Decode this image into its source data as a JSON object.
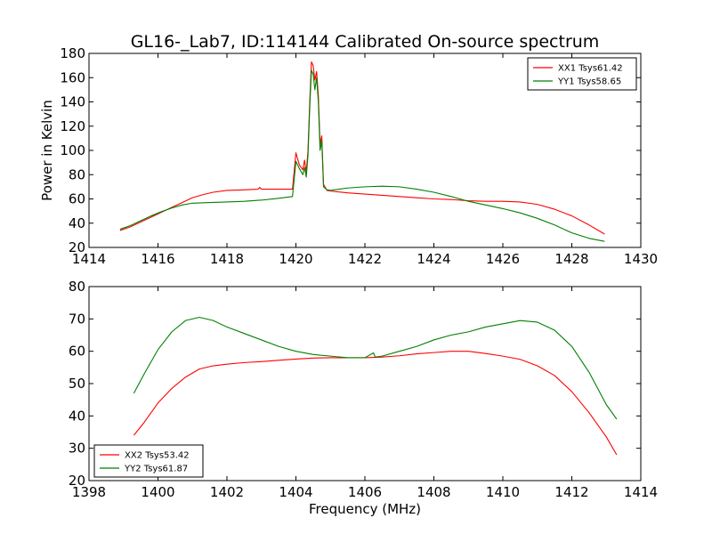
{
  "figure": {
    "title": "GL16-_Lab7, ID:114144 Calibrated On-source spectrum",
    "xlabel": "Frequency (MHz)"
  },
  "chart_data": [
    {
      "type": "line",
      "title": "",
      "xlabel": "",
      "ylabel": "Power in Kelvin",
      "xlim": [
        1414,
        1430
      ],
      "ylim": [
        20,
        180
      ],
      "xticks": [
        1414,
        1416,
        1418,
        1420,
        1422,
        1424,
        1426,
        1428,
        1430
      ],
      "yticks": [
        20,
        40,
        60,
        80,
        100,
        120,
        140,
        160,
        180
      ],
      "legend": "top-right",
      "grid": false,
      "series": [
        {
          "name": "XX1 Tsys61.42",
          "color": "#ff0000",
          "points": [
            [
              1414.9,
              34
            ],
            [
              1415.2,
              37
            ],
            [
              1415.5,
              41
            ],
            [
              1415.8,
              45
            ],
            [
              1416.1,
              49
            ],
            [
              1416.4,
              53
            ],
            [
              1416.7,
              57
            ],
            [
              1417.0,
              61
            ],
            [
              1417.3,
              63.5
            ],
            [
              1417.6,
              65.5
            ],
            [
              1418.0,
              67
            ],
            [
              1418.5,
              67.5
            ],
            [
              1418.9,
              68
            ],
            [
              1418.95,
              69.5
            ],
            [
              1419.0,
              68
            ],
            [
              1419.5,
              68
            ],
            [
              1419.9,
              68
            ],
            [
              1420.0,
              98
            ],
            [
              1420.1,
              88
            ],
            [
              1420.2,
              84
            ],
            [
              1420.25,
              92
            ],
            [
              1420.3,
              82
            ],
            [
              1420.35,
              100
            ],
            [
              1420.4,
              140
            ],
            [
              1420.45,
              173
            ],
            [
              1420.5,
              170
            ],
            [
              1420.55,
              158
            ],
            [
              1420.6,
              165
            ],
            [
              1420.65,
              145
            ],
            [
              1420.7,
              105
            ],
            [
              1420.75,
              112
            ],
            [
              1420.8,
              72
            ],
            [
              1420.9,
              67
            ],
            [
              1421.0,
              66.5
            ],
            [
              1421.5,
              65
            ],
            [
              1422.0,
              64
            ],
            [
              1422.5,
              63
            ],
            [
              1423.0,
              62
            ],
            [
              1423.5,
              61
            ],
            [
              1424.0,
              60
            ],
            [
              1424.5,
              59.5
            ],
            [
              1425.0,
              58.5
            ],
            [
              1425.5,
              58
            ],
            [
              1426.0,
              58
            ],
            [
              1426.5,
              57.5
            ],
            [
              1427.0,
              55.5
            ],
            [
              1427.5,
              51.5
            ],
            [
              1428.0,
              46
            ],
            [
              1428.5,
              38.5
            ],
            [
              1428.95,
              31
            ]
          ]
        },
        {
          "name": "YY1 Tsys58.65",
          "color": "#008000",
          "points": [
            [
              1414.9,
              35
            ],
            [
              1415.2,
              38
            ],
            [
              1415.5,
              42
            ],
            [
              1415.8,
              46
            ],
            [
              1416.1,
              49.5
            ],
            [
              1416.4,
              52.5
            ],
            [
              1416.7,
              55
            ],
            [
              1417.0,
              56.5
            ],
            [
              1417.5,
              57
            ],
            [
              1418.0,
              57.5
            ],
            [
              1418.5,
              58
            ],
            [
              1419.0,
              59
            ],
            [
              1419.5,
              60.5
            ],
            [
              1419.9,
              62
            ],
            [
              1420.0,
              91
            ],
            [
              1420.1,
              85
            ],
            [
              1420.2,
              80
            ],
            [
              1420.25,
              86
            ],
            [
              1420.3,
              78
            ],
            [
              1420.35,
              96
            ],
            [
              1420.4,
              135
            ],
            [
              1420.45,
              166
            ],
            [
              1420.5,
              163
            ],
            [
              1420.55,
              150
            ],
            [
              1420.6,
              160
            ],
            [
              1420.65,
              140
            ],
            [
              1420.7,
              100
            ],
            [
              1420.75,
              108
            ],
            [
              1420.8,
              70
            ],
            [
              1420.9,
              67.5
            ],
            [
              1421.0,
              67
            ],
            [
              1421.5,
              69
            ],
            [
              1422.0,
              70
            ],
            [
              1422.5,
              70.5
            ],
            [
              1423.0,
              70
            ],
            [
              1423.5,
              68
            ],
            [
              1424.0,
              65.5
            ],
            [
              1424.5,
              62
            ],
            [
              1425.0,
              58
            ],
            [
              1425.5,
              55
            ],
            [
              1426.0,
              52
            ],
            [
              1426.5,
              48.5
            ],
            [
              1427.0,
              44
            ],
            [
              1427.5,
              38.5
            ],
            [
              1428.0,
              32
            ],
            [
              1428.5,
              27.5
            ],
            [
              1428.95,
              25
            ]
          ]
        }
      ]
    },
    {
      "type": "line",
      "title": "",
      "xlabel": "Frequency (MHz)",
      "ylabel": "",
      "xlim": [
        1398,
        1414
      ],
      "ylim": [
        20,
        80
      ],
      "xticks": [
        1398,
        1400,
        1402,
        1404,
        1406,
        1408,
        1410,
        1412,
        1414
      ],
      "yticks": [
        20,
        30,
        40,
        50,
        60,
        70,
        80
      ],
      "legend": "bottom-left",
      "grid": false,
      "series": [
        {
          "name": "XX2 Tsys53.42",
          "color": "#ff0000",
          "points": [
            [
              1399.3,
              34
            ],
            [
              1399.6,
              38
            ],
            [
              1400.0,
              44
            ],
            [
              1400.4,
              48.5
            ],
            [
              1400.8,
              52
            ],
            [
              1401.2,
              54.5
            ],
            [
              1401.6,
              55.5
            ],
            [
              1402.0,
              56
            ],
            [
              1402.5,
              56.5
            ],
            [
              1403.0,
              56.8
            ],
            [
              1403.5,
              57.2
            ],
            [
              1404.0,
              57.6
            ],
            [
              1404.5,
              57.9
            ],
            [
              1405.0,
              58
            ],
            [
              1405.5,
              58
            ],
            [
              1406.0,
              58
            ],
            [
              1406.5,
              58.2
            ],
            [
              1407.0,
              58.6
            ],
            [
              1407.5,
              59.2
            ],
            [
              1408.0,
              59.6
            ],
            [
              1408.5,
              60
            ],
            [
              1409.0,
              60
            ],
            [
              1409.5,
              59.3
            ],
            [
              1410.0,
              58.5
            ],
            [
              1410.5,
              57.5
            ],
            [
              1411.0,
              55.5
            ],
            [
              1411.5,
              52.5
            ],
            [
              1412.0,
              47.5
            ],
            [
              1412.5,
              41
            ],
            [
              1413.0,
              33.5
            ],
            [
              1413.3,
              28
            ]
          ]
        },
        {
          "name": "YY2 Tsys61.87",
          "color": "#008000",
          "points": [
            [
              1399.3,
              47
            ],
            [
              1399.6,
              53
            ],
            [
              1400.0,
              60.5
            ],
            [
              1400.4,
              66
            ],
            [
              1400.8,
              69.5
            ],
            [
              1401.2,
              70.5
            ],
            [
              1401.6,
              69.5
            ],
            [
              1402.0,
              67.5
            ],
            [
              1402.5,
              65.5
            ],
            [
              1403.0,
              63.5
            ],
            [
              1403.5,
              61.5
            ],
            [
              1404.0,
              60
            ],
            [
              1404.5,
              59
            ],
            [
              1405.0,
              58.5
            ],
            [
              1405.5,
              58
            ],
            [
              1406.0,
              58
            ],
            [
              1406.25,
              59.5
            ],
            [
              1406.3,
              58.2
            ],
            [
              1406.5,
              58.5
            ],
            [
              1407.0,
              60
            ],
            [
              1407.5,
              61.5
            ],
            [
              1408.0,
              63.5
            ],
            [
              1408.5,
              65
            ],
            [
              1409.0,
              66
            ],
            [
              1409.5,
              67.5
            ],
            [
              1410.0,
              68.5
            ],
            [
              1410.5,
              69.5
            ],
            [
              1411.0,
              69
            ],
            [
              1411.5,
              66.5
            ],
            [
              1412.0,
              61.5
            ],
            [
              1412.5,
              53.5
            ],
            [
              1413.0,
              43.5
            ],
            [
              1413.3,
              39
            ]
          ]
        }
      ]
    }
  ]
}
